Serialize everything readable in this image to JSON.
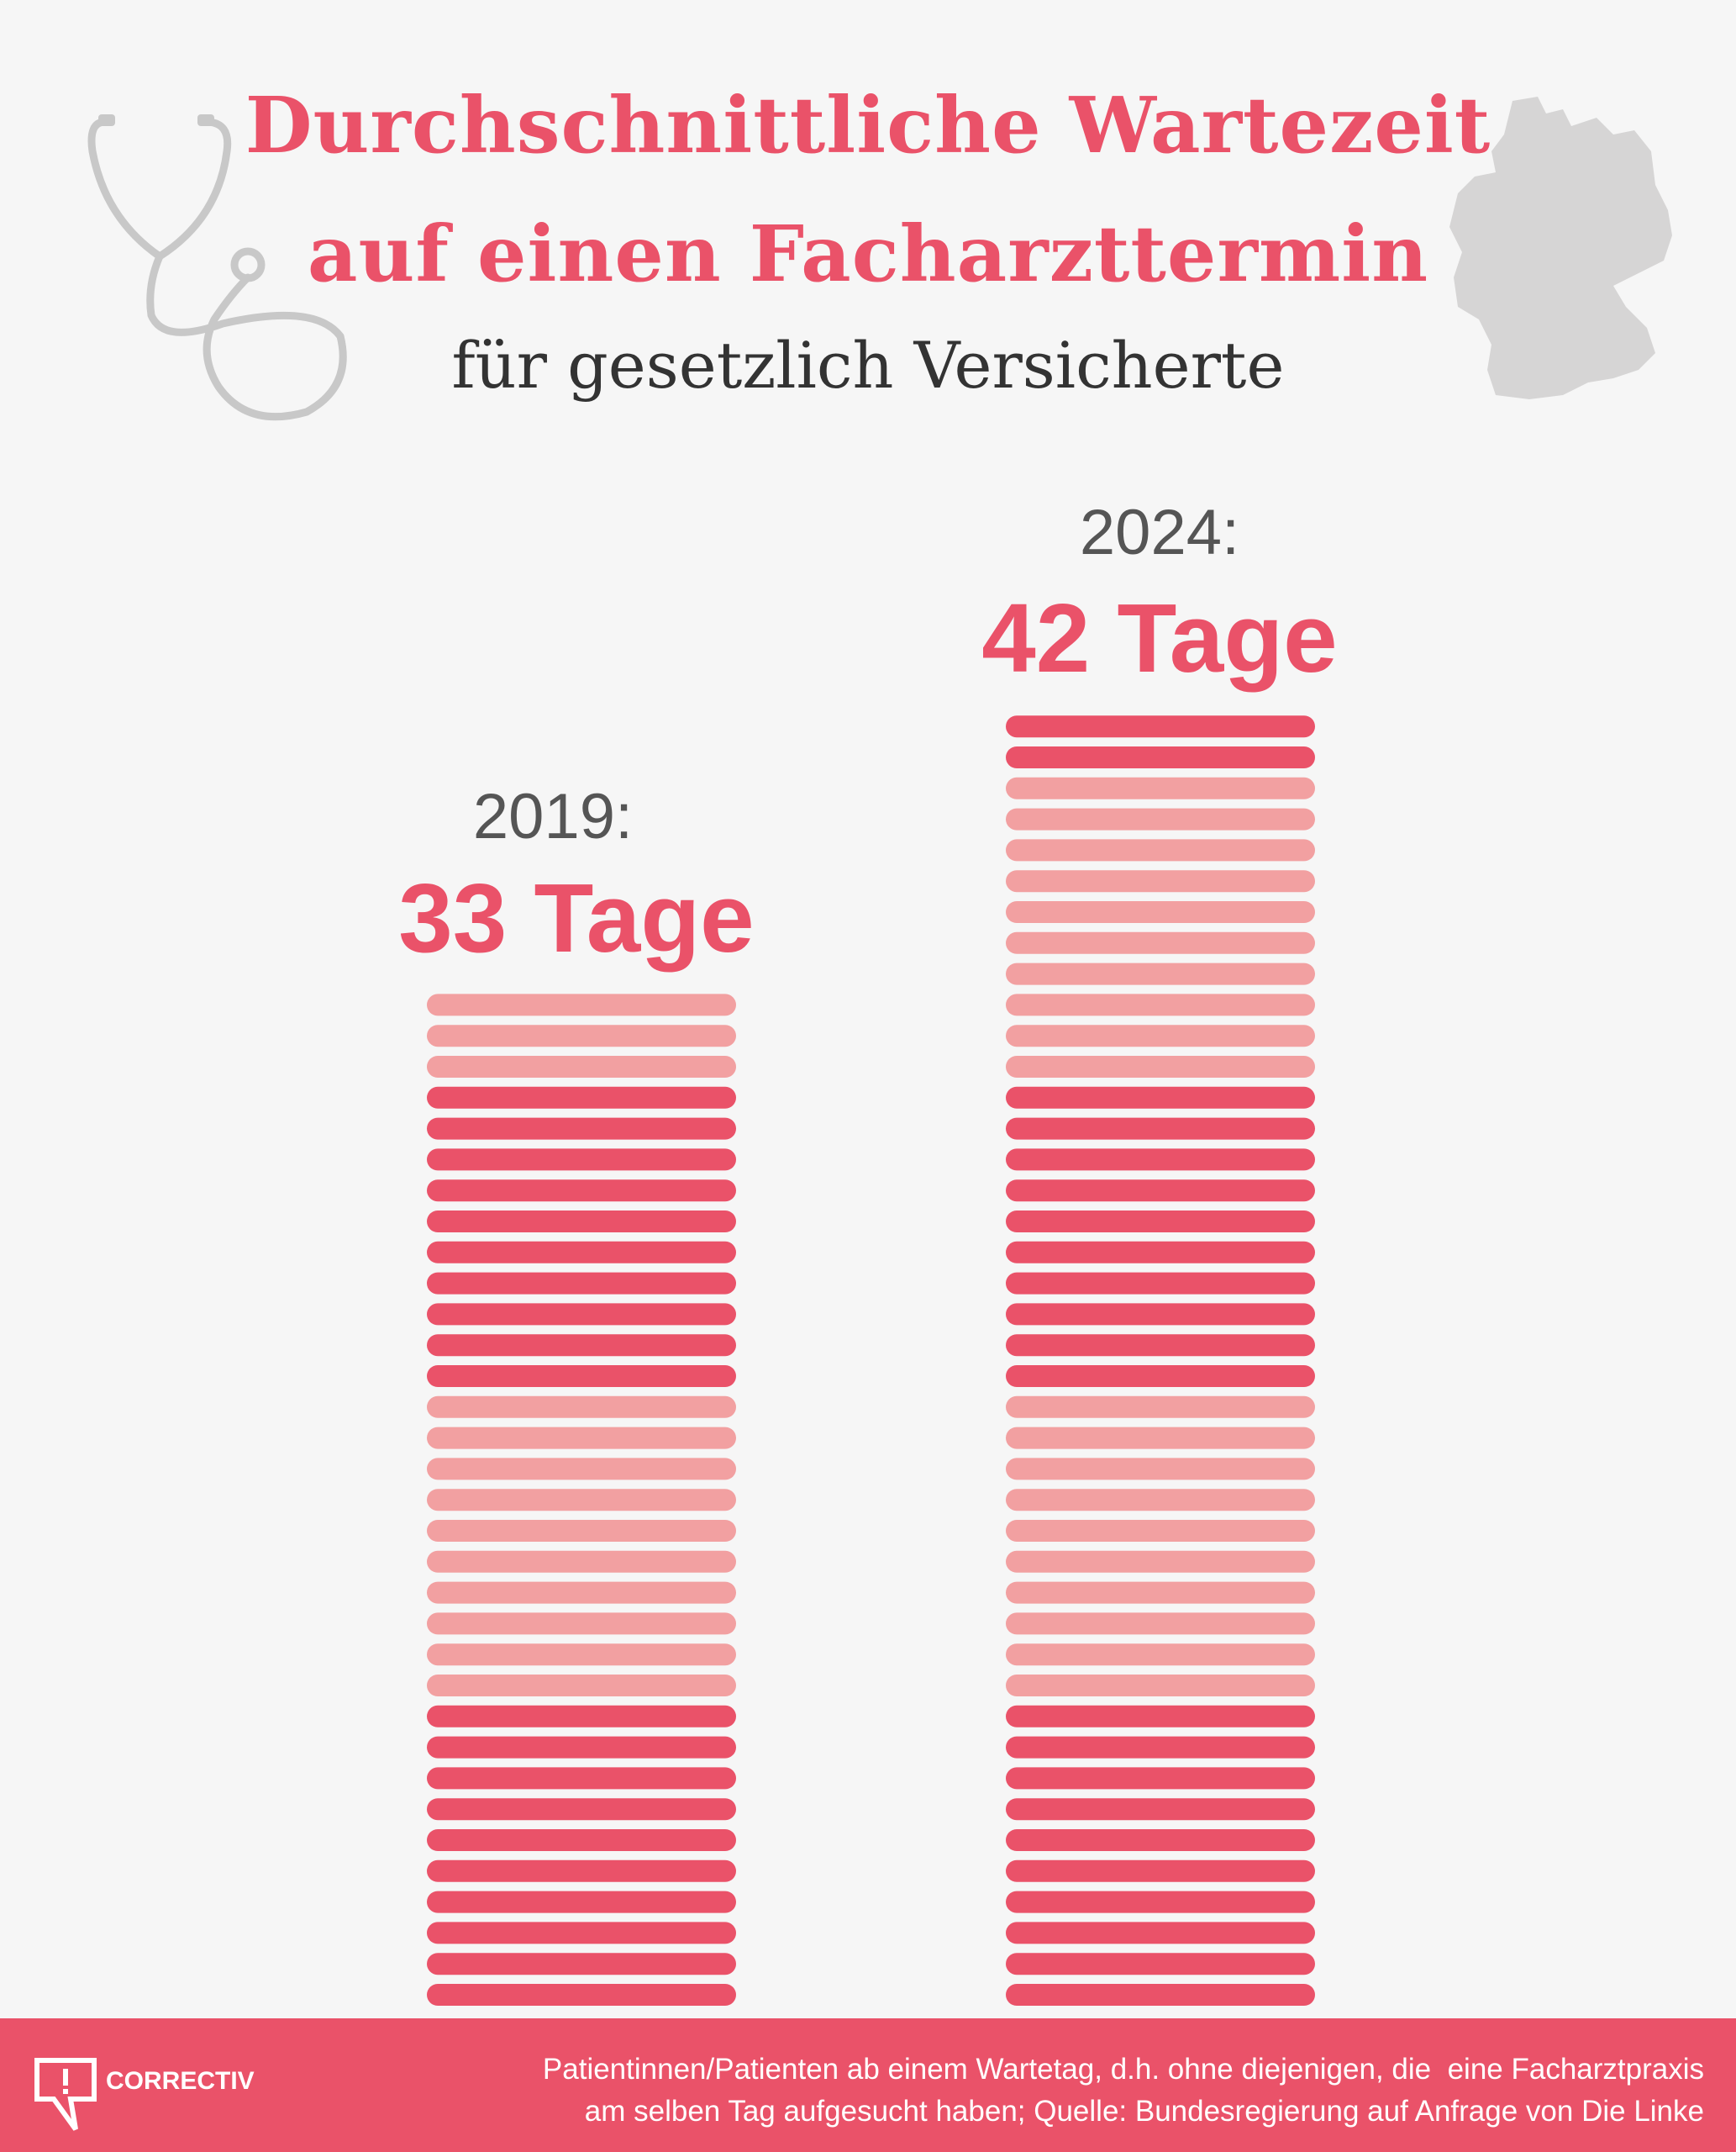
{
  "header": {
    "title_line1": "Durchschnittliche Wartezeit",
    "title_line2": "auf einen Facharzttermin",
    "subtitle": "für gesetzlich Versicherte",
    "icons": [
      "stethoscope-icon",
      "germany-map-icon"
    ]
  },
  "chart_data": {
    "type": "bar",
    "title": "Durchschnittliche Wartezeit auf einen Facharzttermin",
    "subtitle": "für gesetzlich Versicherte",
    "unit": "Tage",
    "categories": [
      "2019",
      "2024"
    ],
    "values": [
      33,
      42
    ],
    "year_labels": [
      "2019:",
      "2024:"
    ],
    "value_labels": [
      "33 Tage",
      "42 Tage"
    ],
    "encoding": "one stripe per day, alternating color every 10 days from bottom"
  },
  "colors": {
    "dark": "#EA5269",
    "light": "#F2A0A1",
    "background": "#F6F6F6",
    "icon_gray": "#C8C8C8"
  },
  "footer": {
    "logo": "CORRECTIV",
    "note_line1": "Patientinnen/Patienten ab einem Wartetag, d.h. ohne diejenigen, die  eine Facharztpraxis",
    "note_line2": "am selben Tag aufgesucht haben; Quelle: Bundesregierung auf Anfrage von Die Linke"
  }
}
